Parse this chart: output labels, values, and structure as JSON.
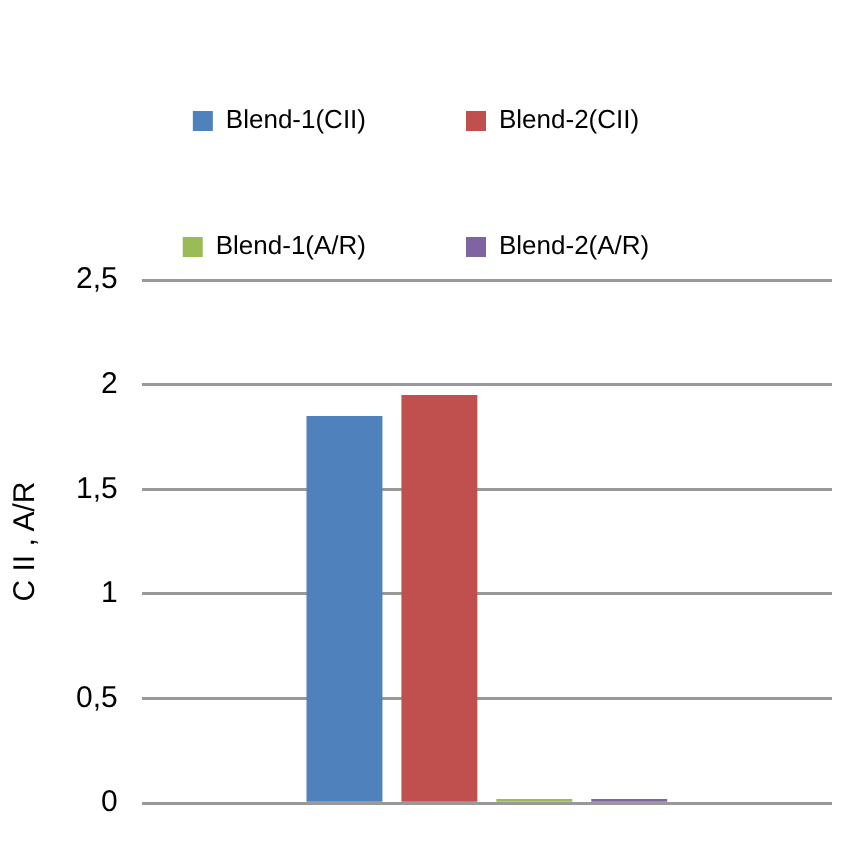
{
  "chart_data": {
    "type": "bar",
    "ylabel": "C II , A/R",
    "categories": [
      null
    ],
    "series": [
      {
        "name": "Blend-1(CII)",
        "color": "#4f81bd",
        "values": [
          1.85
        ]
      },
      {
        "name": "Blend-2(CII)",
        "color": "#c0504d",
        "values": [
          1.95
        ]
      },
      {
        "name": "Blend-1(A/R)",
        "color": "#9bbb59",
        "values": [
          0.02
        ]
      },
      {
        "name": "Blend-2(A/R)",
        "color": "#8064a2",
        "values": [
          0.02
        ]
      }
    ],
    "ylim": [
      0,
      2.5
    ],
    "yticks": [
      0,
      {
        "value": 0.5,
        "label": "0,5"
      },
      1,
      {
        "value": 1.5,
        "label": "1,5"
      },
      2,
      {
        "value": 2.5,
        "label": "2,5"
      }
    ],
    "grid": "y",
    "legend": "top"
  }
}
